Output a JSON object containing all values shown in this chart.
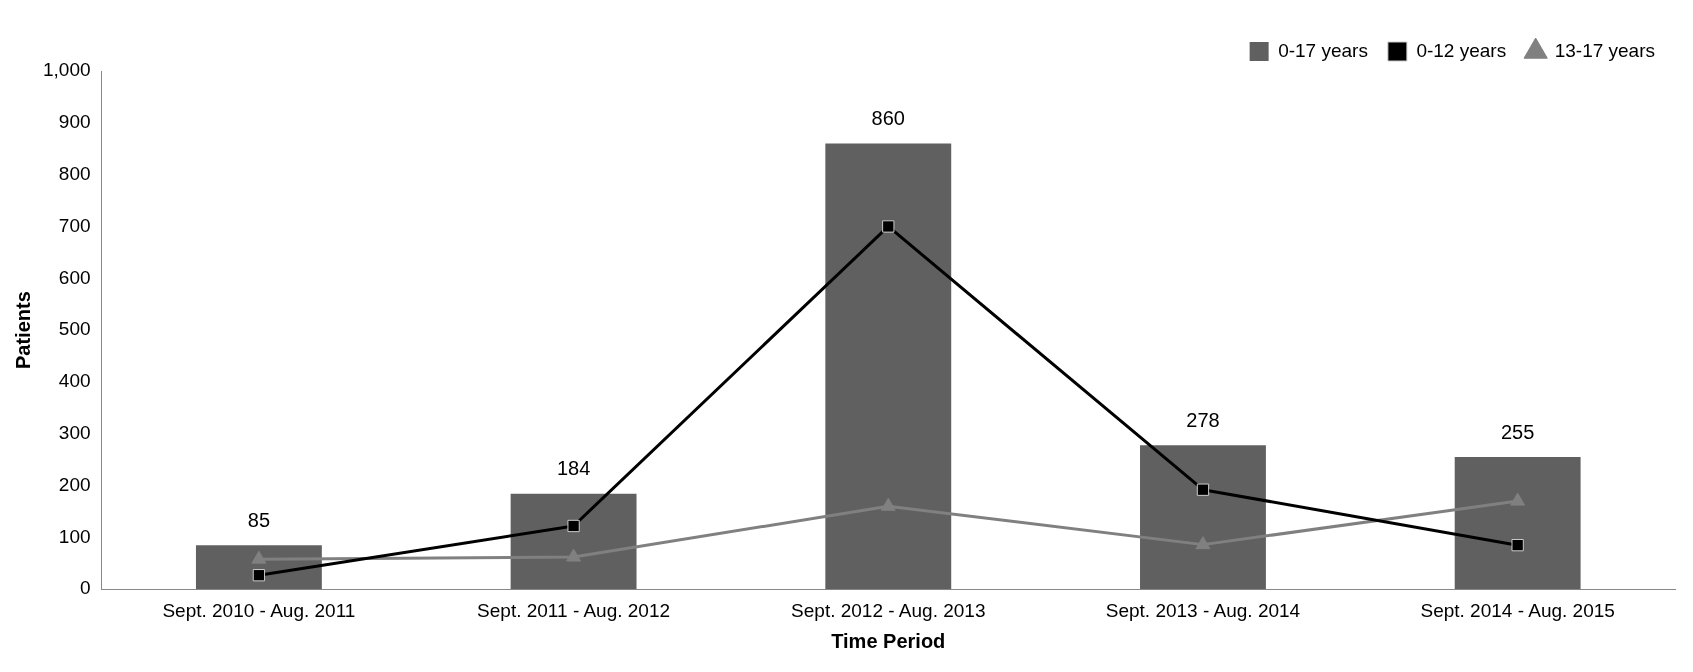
{
  "chart_data": {
    "type": "bar",
    "xlabel": "Time Period",
    "ylabel": "Patients",
    "categories": [
      "Sept. 2010 - Aug. 2011",
      "Sept. 2011 - Aug. 2012",
      "Sept. 2012 - Aug. 2013",
      "Sept. 2013 - Aug. 2014",
      "Sept. 2014 - Aug. 2015"
    ],
    "series": [
      {
        "name": "0-17 years",
        "color": "#606060",
        "values": [
          85,
          184,
          860,
          278,
          255
        ],
        "value_labels": [
          "85",
          "184",
          "860",
          "278",
          "255"
        ]
      },
      {
        "name": "0-12 years",
        "type": "line",
        "color": "#000000",
        "marker": "square",
        "values": [
          27,
          122,
          700,
          192,
          85
        ]
      },
      {
        "name": "13-17 years",
        "type": "line",
        "color": "#808080",
        "marker": "triangle",
        "values": [
          58,
          62,
          160,
          86,
          170
        ]
      }
    ],
    "ylim": [
      0,
      1000
    ],
    "yticks": [
      0,
      {
        "value": 100,
        "label": "100"
      },
      {
        "value": 200,
        "label": "200"
      },
      {
        "value": 300,
        "label": "300"
      },
      {
        "value": 400,
        "label": "400"
      },
      {
        "value": 500,
        "label": "500"
      },
      {
        "value": 600,
        "label": "600"
      },
      {
        "value": 700,
        "label": "700"
      },
      {
        "value": 800,
        "label": "800"
      },
      {
        "value": 900,
        "label": "900"
      },
      {
        "value": 1000,
        "label": "1,000"
      }
    ],
    "grid": false,
    "legend": "top right"
  }
}
